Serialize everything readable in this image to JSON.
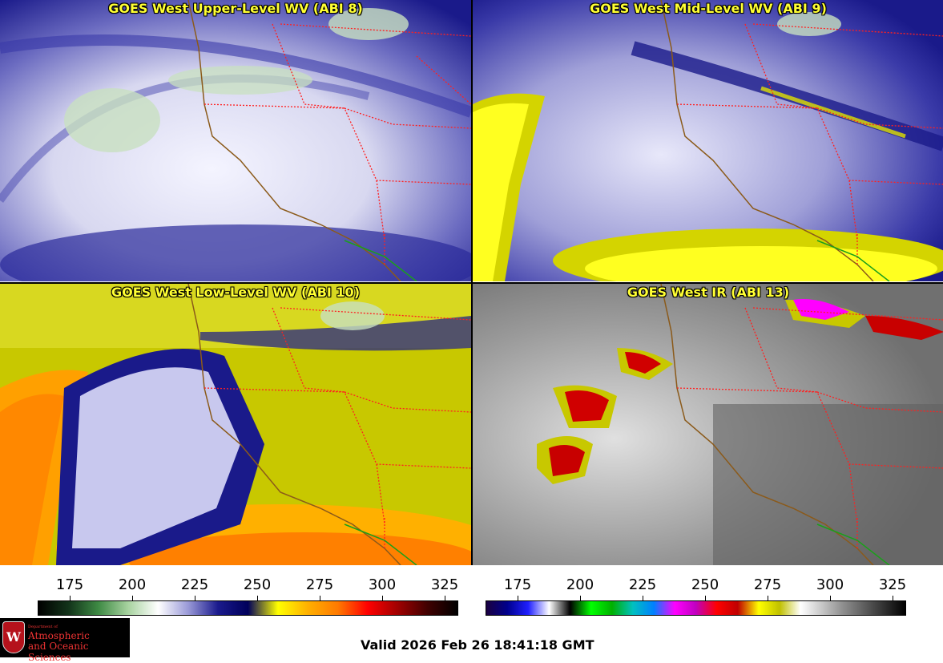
{
  "panels": [
    {
      "id": "upper",
      "title": "GOES West Upper-Level WV (ABI 8)",
      "scheme": "wv",
      "level": 0.2
    },
    {
      "id": "mid",
      "title": "GOES West Mid-Level WV (ABI 9)",
      "scheme": "wv",
      "level": 0.45
    },
    {
      "id": "low",
      "title": "GOES West Low-Level WV (ABI 10)",
      "scheme": "wv",
      "level": 0.8
    },
    {
      "id": "ir",
      "title": "GOES West IR (ABI 13)",
      "scheme": "ir",
      "level": 0.5
    }
  ],
  "scales": [
    {
      "id": "wv-scale",
      "labels": [
        "175",
        "200",
        "225",
        "250",
        "275",
        "300",
        "325"
      ],
      "stops": [
        "#000000",
        "#12331a",
        "#3e8a44",
        "#a8d3a0",
        "#ffffff",
        "#9a9ad8",
        "#1a1a8c",
        "#00005a",
        "#ffff00",
        "#ffb000",
        "#ff7a00",
        "#ff0000",
        "#a00000",
        "#400000",
        "#000000"
      ]
    },
    {
      "id": "ir-scale",
      "labels": [
        "175",
        "200",
        "225",
        "250",
        "275",
        "300",
        "325"
      ],
      "stops": [
        "#1a0040",
        "#00008c",
        "#2020ff",
        "#ffffff",
        "#000000",
        "#00ff00",
        "#00b000",
        "#00c0c0",
        "#0080ff",
        "#ff00ff",
        "#c000c0",
        "#ff0000",
        "#c00000",
        "#ffff00",
        "#c0c000",
        "#ffffff",
        "#c8c8c8",
        "#909090",
        "#606060",
        "#303030",
        "#000000"
      ]
    }
  ],
  "logo": {
    "line1": "Department of",
    "line2": "Atmospheric",
    "line3": "and Oceanic Sciences",
    "crest": "W"
  },
  "valid_time": "Valid 2026 Feb 26 18:41:18 GMT",
  "colors": {
    "title_text": "#ffff33",
    "state_borders": "#ff2020",
    "coastline": "#8b5a1a",
    "mexico_border": "#1aa01a"
  }
}
